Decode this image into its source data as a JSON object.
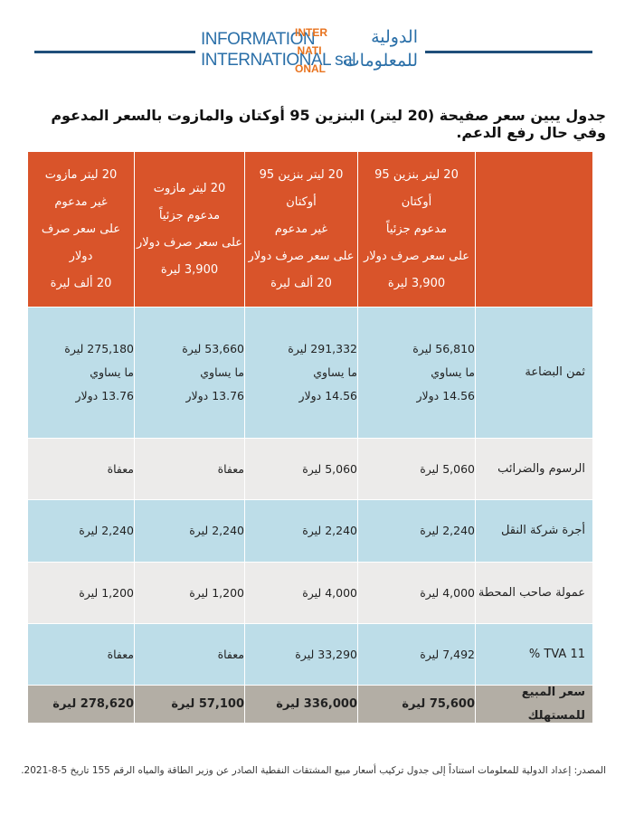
{
  "header": {
    "logo_en": [
      "INFORMATION",
      "INTERNATIONAL sal"
    ],
    "logo_mark": [
      "INTER",
      "NATI",
      "ONAL"
    ],
    "logo_ar": [
      "الدولية",
      "للمعلومات"
    ]
  },
  "title": "جدول يبين سعر صفيحة (20 ليتر) البنزين 95 أوكتان والمازوت بالسعر المدعوم وفي حال رفع الدعم.",
  "table": {
    "columns": [
      [
        "20 ليتر بنزين 95 أوكتان",
        "مدعوم جزئياً",
        "على سعر صرف دولار",
        "3,900 ليرة"
      ],
      [
        "20 ليتر بنزين 95 أوكتان",
        "غير مدعوم",
        "على سعر صرف دولار",
        "20 ألف ليرة"
      ],
      [
        "20 ليتر مازوت",
        "مدعوم جزئياً",
        "على سعر صرف دولار",
        "3,900 ليرة"
      ],
      [
        "20 ليتر مازوت",
        "غير مدعوم",
        "على سعر صرف دولار",
        "20 ألف ليرة"
      ]
    ],
    "rows": [
      {
        "label": "ثمن البضاعة",
        "cells": [
          [
            "56,810 ليرة",
            "ما يساوي",
            "14.56 دولار"
          ],
          [
            "291,332 ليرة",
            "ما يساوي",
            "14.56 دولار"
          ],
          [
            "53,660 ليرة",
            "ما يساوي",
            "13.76 دولار"
          ],
          [
            "275,180 ليرة",
            "ما يساوي",
            "13.76 دولار"
          ]
        ]
      },
      {
        "label": "الرسوم والضرائب",
        "cells": [
          [
            "5,060 ليرة"
          ],
          [
            "5,060 ليرة"
          ],
          [
            "معفاة"
          ],
          [
            "معفاة"
          ]
        ]
      },
      {
        "label": "أجرة شركة النقل",
        "cells": [
          [
            "2,240 ليرة"
          ],
          [
            "2,240 ليرة"
          ],
          [
            "2,240 ليرة"
          ],
          [
            "2,240 ليرة"
          ]
        ]
      },
      {
        "label": "عمولة صاحب المحطة",
        "cells": [
          [
            "4,000 ليرة"
          ],
          [
            "4,000 ليرة"
          ],
          [
            "1,200 ليرة"
          ],
          [
            "1,200 ليرة"
          ]
        ]
      },
      {
        "label": "TVA 11 %",
        "cells": [
          [
            "7,492 ليرة"
          ],
          [
            "33,290 ليرة"
          ],
          [
            "معفاة"
          ],
          [
            "معفاة"
          ]
        ]
      },
      {
        "label": "سعر المبيع للمستهلك",
        "cells": [
          [
            "75,600 ليرة"
          ],
          [
            "336,000 ليرة"
          ],
          [
            "57,100 ليرة"
          ],
          [
            "278,620 ليرة"
          ]
        ]
      }
    ]
  },
  "source": "المصدر: إعداد الدولية للمعلومات استناداً إلى جدول تركيب أسعار مبيع المشتقات النفطية الصادر عن وزير الطاقة والمياه الرقم 155 تاريخ 5-8-2021."
}
